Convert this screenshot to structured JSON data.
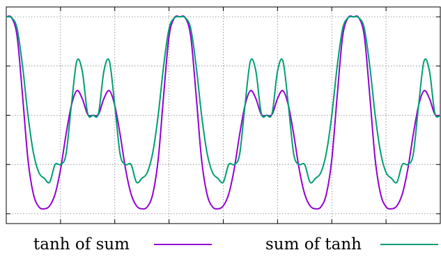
{
  "chart_data": {
    "type": "line",
    "title": "",
    "xlabel": "",
    "ylabel": "",
    "xlim": [
      0,
      4
    ],
    "ylim": [
      -1.1,
      1.1
    ],
    "x_ticks": [
      0,
      0.5,
      1,
      1.5,
      2,
      2.5,
      3,
      3.5,
      4
    ],
    "y_ticks": [
      -1,
      -0.5,
      0,
      0.5,
      1
    ],
    "grid": true,
    "grid_style": "dotted",
    "tick_labels_visible": false,
    "legend_position": "bottom",
    "series": [
      {
        "name": "tanh of sum",
        "color": "#9400d3",
        "x": [
          0,
          0.05,
          0.1,
          0.15,
          0.2,
          0.25,
          0.3,
          0.35,
          0.4,
          0.45,
          0.5,
          0.55,
          0.6,
          0.65,
          0.7,
          0.75,
          0.8,
          0.85,
          0.9,
          0.95,
          1,
          1.05,
          1.1,
          1.15,
          1.2,
          1.25,
          1.3,
          1.35,
          1.4,
          1.45,
          1.5,
          1.55,
          1.6,
          1.65,
          1.7,
          1.75,
          1.8,
          1.85,
          1.9,
          1.95,
          2,
          2.05,
          2.1,
          2.15,
          2.2,
          2.25,
          2.3,
          2.35,
          2.4,
          2.45,
          2.5,
          2.55,
          2.6,
          2.65,
          2.7,
          2.75,
          2.8,
          2.85,
          2.9,
          2.95,
          3,
          3.05,
          3.1,
          3.15,
          3.2,
          3.25,
          3.3,
          3.35,
          3.4,
          3.45,
          3.5,
          3.55,
          3.6,
          3.65,
          3.7,
          3.75,
          3.8,
          3.85,
          3.9,
          3.95,
          4
        ],
        "y": [
          1,
          0.99,
          0.8,
          0.2,
          -0.45,
          -0.8,
          -0.93,
          -0.95,
          -0.92,
          -0.8,
          -0.55,
          -0.2,
          0.1,
          0.25,
          0.17,
          0.01,
          0,
          0.01,
          0.17,
          0.25,
          0.1,
          -0.2,
          -0.55,
          -0.8,
          -0.92,
          -0.95,
          -0.93,
          -0.8,
          -0.45,
          0.2,
          0.8,
          0.99,
          1,
          0.99,
          0.8,
          0.2,
          -0.45,
          -0.8,
          -0.93,
          -0.95,
          -0.92,
          -0.8,
          -0.55,
          -0.2,
          0.1,
          0.25,
          0.17,
          0.01,
          0,
          0.01,
          0.17,
          0.25,
          0.1,
          -0.2,
          -0.55,
          -0.8,
          -0.92,
          -0.95,
          -0.93,
          -0.8,
          -0.45,
          0.2,
          0.8,
          0.99,
          1,
          0.99,
          0.8,
          0.2,
          -0.45,
          -0.8,
          -0.93,
          -0.95,
          -0.92,
          -0.8,
          -0.55,
          -0.2,
          0.1,
          0.25,
          0.17,
          0.01,
          0
        ]
      },
      {
        "name": "sum of tanh",
        "color": "#009e73",
        "x": [
          0,
          0.05,
          0.1,
          0.15,
          0.2,
          0.25,
          0.3,
          0.35,
          0.4,
          0.45,
          0.5,
          0.55,
          0.6,
          0.65,
          0.7,
          0.75,
          0.8,
          0.85,
          0.9,
          0.95,
          1,
          1.05,
          1.1,
          1.15,
          1.2,
          1.25,
          1.3,
          1.35,
          1.4,
          1.45,
          1.5,
          1.55,
          1.6,
          1.65,
          1.7,
          1.75,
          1.8,
          1.85,
          1.9,
          1.95,
          2,
          2.05,
          2.1,
          2.15,
          2.2,
          2.25,
          2.3,
          2.35,
          2.4,
          2.45,
          2.5,
          2.55,
          2.6,
          2.65,
          2.7,
          2.75,
          2.8,
          2.85,
          2.9,
          2.95,
          3,
          3.05,
          3.1,
          3.15,
          3.2,
          3.25,
          3.3,
          3.35,
          3.4,
          3.45,
          3.5,
          3.55,
          3.6,
          3.65,
          3.7,
          3.75,
          3.8,
          3.85,
          3.9,
          3.95,
          4
        ],
        "y": [
          1,
          0.99,
          0.88,
          0.5,
          0.0,
          -0.38,
          -0.58,
          -0.64,
          -0.68,
          -0.5,
          -0.5,
          -0.4,
          0.1,
          0.55,
          0.45,
          0.02,
          0,
          0.02,
          0.45,
          0.55,
          0.1,
          -0.4,
          -0.5,
          -0.5,
          -0.68,
          -0.64,
          -0.58,
          -0.38,
          0.0,
          0.5,
          0.88,
          0.99,
          1,
          0.99,
          0.88,
          0.5,
          0.0,
          -0.38,
          -0.58,
          -0.64,
          -0.68,
          -0.5,
          -0.5,
          -0.4,
          0.1,
          0.55,
          0.45,
          0.02,
          0,
          0.02,
          0.45,
          0.55,
          0.1,
          -0.4,
          -0.5,
          -0.5,
          -0.68,
          -0.64,
          -0.58,
          -0.38,
          0.0,
          0.5,
          0.88,
          0.99,
          1,
          0.99,
          0.88,
          0.5,
          0.0,
          -0.38,
          -0.58,
          -0.64,
          -0.68,
          -0.5,
          -0.5,
          -0.4,
          0.1,
          0.55,
          0.45,
          0.02,
          0
        ]
      }
    ]
  }
}
